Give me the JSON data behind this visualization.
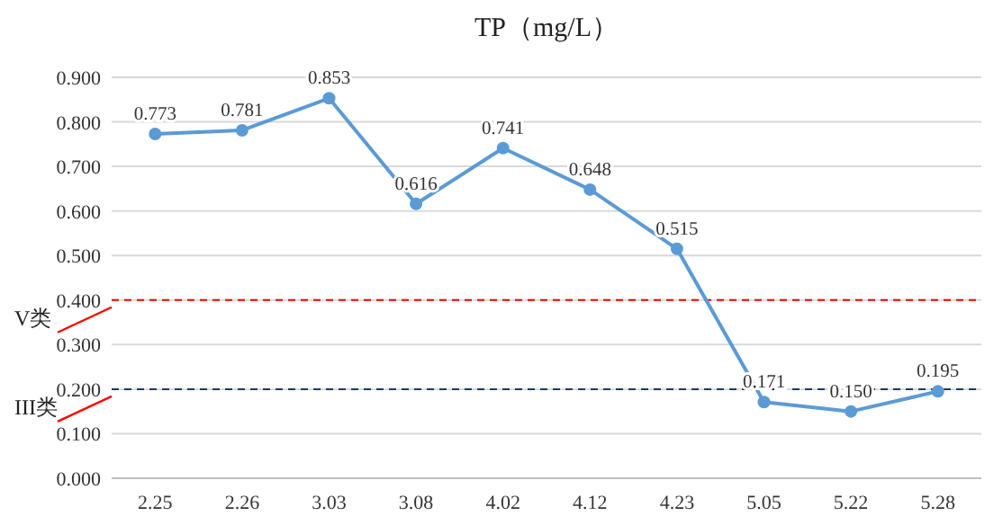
{
  "chart_data": {
    "type": "line",
    "title": "TP（mg/L）",
    "categories": [
      "2.25",
      "2.26",
      "3.03",
      "3.08",
      "4.02",
      "4.12",
      "4.23",
      "5.05",
      "5.22",
      "5.28"
    ],
    "series": [
      {
        "color": "#5b9bd5",
        "values": [
          0.773,
          0.781,
          0.853,
          0.616,
          0.741,
          0.648,
          0.515,
          0.171,
          0.15,
          0.195
        ]
      }
    ],
    "value_labels": [
      "0.773",
      "0.781",
      "0.853",
      "0.616",
      "0.741",
      "0.648",
      "0.515",
      "0.171",
      "0.150",
      "0.195"
    ],
    "ylim": [
      0,
      0.9
    ],
    "yticks": [
      {
        "value": 0,
        "label": "0.000"
      },
      {
        "value": 0.1,
        "label": "0.100"
      },
      {
        "value": 0.2,
        "label": "0.200"
      },
      {
        "value": 0.3,
        "label": "0.300"
      },
      {
        "value": 0.4,
        "label": "0.400"
      },
      {
        "value": 0.5,
        "label": "0.500"
      },
      {
        "value": 0.6,
        "label": "0.600"
      },
      {
        "value": 0.7,
        "label": "0.700"
      },
      {
        "value": 0.8,
        "label": "0.800"
      },
      {
        "value": 0.9,
        "label": "0.900"
      }
    ],
    "ref_lines": [
      {
        "axis": "y",
        "value": 0.4,
        "label": "V类",
        "color": "#ff0000",
        "line_style": "dashed"
      },
      {
        "axis": "y",
        "value": 0.2,
        "label": "III类",
        "color": "#203864",
        "line_style": "dashed"
      }
    ],
    "grid": "y",
    "marker": "circle",
    "line_style": "solid"
  }
}
